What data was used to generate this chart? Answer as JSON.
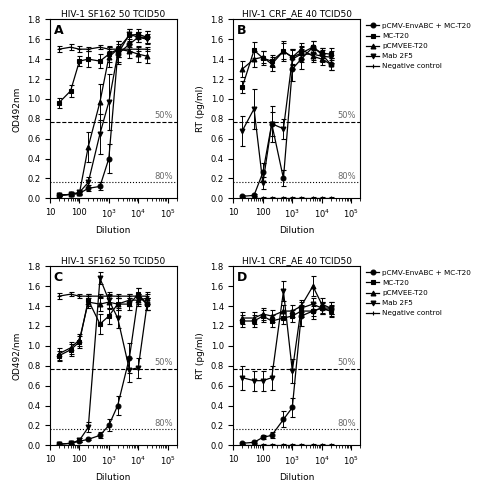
{
  "title_A": "HIV-1 SF162 50 TCID50",
  "title_B": "HIV-1 CRF_AE 40 TCID50",
  "title_C": "HIV-1 SF162 50 TCID50",
  "title_D": "HIV-1 CRF_AE 40 TCID50",
  "ylabel_A": "OD492nm",
  "ylabel_B": "RT (pg/ml)",
  "ylabel_C": "OD492/nm",
  "ylabel_D": "RT (pg/ml)",
  "xlabel": "Dilution",
  "legend_labels_BD": [
    "pCMV-EnvABC + MC-T20",
    "MC-T20",
    "pCMVEE-T20",
    "Mab 2F5",
    "Negative control"
  ],
  "A_x": [
    20,
    50,
    100,
    200,
    500,
    1000,
    2000,
    5000,
    10000,
    20000
  ],
  "A_neg_y": [
    1.5,
    1.52,
    1.5,
    1.5,
    1.52,
    1.5,
    1.5,
    1.5,
    1.5,
    1.5
  ],
  "A_neg_e": [
    0.03,
    0.03,
    0.03,
    0.02,
    0.02,
    0.02,
    0.02,
    0.02,
    0.02,
    0.02
  ],
  "A_sq_y": [
    0.96,
    1.08,
    1.38,
    1.4,
    1.38,
    1.45,
    1.5,
    1.64,
    1.65,
    1.62
  ],
  "A_sq_e": [
    0.05,
    0.06,
    0.05,
    0.08,
    0.07,
    0.08,
    0.08,
    0.06,
    0.05,
    0.06
  ],
  "A_tri_y": [
    0.03,
    0.04,
    0.05,
    0.52,
    0.97,
    1.42,
    1.5,
    1.48,
    1.45,
    1.43
  ],
  "A_tri_e": [
    0.01,
    0.02,
    0.02,
    0.15,
    0.18,
    0.1,
    0.08,
    0.07,
    0.08,
    0.07
  ],
  "A_inv_y": [
    0.03,
    0.04,
    0.06,
    0.16,
    0.65,
    0.97,
    1.45,
    1.65,
    1.62,
    1.6
  ],
  "A_inv_e": [
    0.01,
    0.01,
    0.02,
    0.05,
    0.2,
    0.28,
    0.08,
    0.05,
    0.05,
    0.05
  ],
  "A_circ_y": [
    0.03,
    0.04,
    0.05,
    0.1,
    0.12,
    0.4,
    1.45,
    1.55,
    1.62,
    1.62
  ],
  "A_circ_e": [
    0.01,
    0.01,
    0.01,
    0.03,
    0.04,
    0.15,
    0.1,
    0.08,
    0.05,
    0.06
  ],
  "B_x": [
    20,
    50,
    100,
    200,
    500,
    1000,
    2000,
    5000,
    10000,
    20000
  ],
  "B_neg_y": [
    0.0,
    0.0,
    0.0,
    0.0,
    0.0,
    0.0,
    0.0,
    0.0,
    0.0,
    0.0
  ],
  "B_neg_e": [
    0.01,
    0.01,
    0.01,
    0.01,
    0.01,
    0.01,
    0.01,
    0.01,
    0.01,
    0.01
  ],
  "B_sq_y": [
    1.12,
    1.49,
    1.41,
    1.38,
    1.48,
    1.42,
    1.46,
    1.52,
    1.46,
    1.45
  ],
  "B_sq_e": [
    0.06,
    0.08,
    0.07,
    0.06,
    0.08,
    0.07,
    0.06,
    0.06,
    0.05,
    0.06
  ],
  "B_tri_y": [
    1.3,
    1.4,
    1.42,
    1.35,
    1.48,
    1.42,
    1.5,
    1.43,
    1.4,
    1.35
  ],
  "B_tri_e": [
    0.08,
    0.08,
    0.06,
    0.07,
    0.1,
    0.08,
    0.06,
    0.06,
    0.06,
    0.06
  ],
  "B_inv_y": [
    0.68,
    0.9,
    0.15,
    0.75,
    0.7,
    1.4,
    1.45,
    1.45,
    1.43,
    1.42
  ],
  "B_inv_e": [
    0.15,
    0.2,
    0.06,
    0.12,
    0.1,
    0.1,
    0.08,
    0.06,
    0.06,
    0.06
  ],
  "B_circ_y": [
    0.02,
    0.03,
    0.26,
    0.75,
    0.2,
    1.3,
    1.4,
    1.52,
    1.45,
    1.35
  ],
  "B_circ_e": [
    0.01,
    0.01,
    0.1,
    0.18,
    0.08,
    0.12,
    0.1,
    0.06,
    0.06,
    0.06
  ],
  "C_x": [
    20,
    50,
    100,
    200,
    500,
    1000,
    2000,
    5000,
    10000,
    20000
  ],
  "C_neg_y": [
    1.5,
    1.52,
    1.5,
    1.5,
    1.5,
    1.5,
    1.5,
    1.5,
    1.5,
    1.5
  ],
  "C_neg_e": [
    0.03,
    0.02,
    0.02,
    0.02,
    0.02,
    0.02,
    0.02,
    0.02,
    0.02,
    0.02
  ],
  "C_sq_y": [
    0.9,
    0.96,
    1.04,
    1.46,
    1.22,
    1.3,
    1.42,
    1.42,
    1.52,
    1.42
  ],
  "C_sq_e": [
    0.05,
    0.06,
    0.06,
    0.06,
    0.1,
    0.08,
    0.06,
    0.06,
    0.06,
    0.06
  ],
  "C_tri_y": [
    0.92,
    0.98,
    1.06,
    1.44,
    1.42,
    1.44,
    1.42,
    1.46,
    1.46,
    1.48
  ],
  "C_tri_e": [
    0.06,
    0.06,
    0.06,
    0.06,
    0.07,
    0.07,
    0.06,
    0.06,
    0.06,
    0.06
  ],
  "C_inv_y": [
    0.01,
    0.02,
    0.05,
    0.18,
    1.68,
    1.46,
    1.28,
    0.76,
    0.78,
    1.42
  ],
  "C_inv_e": [
    0.01,
    0.01,
    0.02,
    0.05,
    0.06,
    0.08,
    0.1,
    0.12,
    0.1,
    0.06
  ],
  "C_circ_y": [
    0.01,
    0.02,
    0.04,
    0.06,
    0.1,
    0.2,
    0.4,
    0.88,
    1.5,
    1.42
  ],
  "C_circ_e": [
    0.01,
    0.01,
    0.01,
    0.01,
    0.03,
    0.06,
    0.1,
    0.15,
    0.08,
    0.06
  ],
  "D_x": [
    20,
    50,
    100,
    200,
    500,
    1000,
    2000,
    5000,
    10000,
    20000
  ],
  "D_neg_y": [
    0.0,
    0.0,
    0.0,
    0.0,
    0.0,
    0.0,
    0.0,
    0.0,
    0.0,
    0.0
  ],
  "D_neg_e": [
    0.01,
    0.01,
    0.01,
    0.01,
    0.01,
    0.01,
    0.01,
    0.01,
    0.01,
    0.01
  ],
  "D_sq_y": [
    1.25,
    1.25,
    1.3,
    1.25,
    1.28,
    1.3,
    1.35,
    1.35,
    1.38,
    1.35
  ],
  "D_sq_e": [
    0.06,
    0.06,
    0.06,
    0.06,
    0.06,
    0.06,
    0.06,
    0.05,
    0.05,
    0.05
  ],
  "D_tri_y": [
    1.28,
    1.28,
    1.32,
    1.3,
    1.35,
    1.35,
    1.4,
    1.6,
    1.42,
    1.38
  ],
  "D_tri_e": [
    0.06,
    0.06,
    0.06,
    0.06,
    0.06,
    0.06,
    0.06,
    0.1,
    0.06,
    0.06
  ],
  "D_inv_y": [
    0.68,
    0.65,
    0.65,
    0.68,
    1.55,
    0.75,
    1.38,
    1.42,
    1.38,
    1.35
  ],
  "D_inv_e": [
    0.12,
    0.1,
    0.1,
    0.12,
    0.1,
    0.12,
    0.06,
    0.06,
    0.06,
    0.06
  ],
  "D_circ_y": [
    0.02,
    0.03,
    0.08,
    0.1,
    0.26,
    0.38,
    1.3,
    1.35,
    1.38,
    1.38
  ],
  "D_circ_e": [
    0.01,
    0.01,
    0.02,
    0.03,
    0.08,
    0.1,
    0.1,
    0.08,
    0.06,
    0.06
  ],
  "line_50": 0.77,
  "line_80": 0.165,
  "ylim": [
    0.0,
    1.8
  ],
  "yticks": [
    0.0,
    0.2,
    0.4,
    0.6,
    0.8,
    1.0,
    1.2,
    1.4,
    1.6,
    1.8
  ],
  "xlim_log": [
    10,
    200000
  ]
}
